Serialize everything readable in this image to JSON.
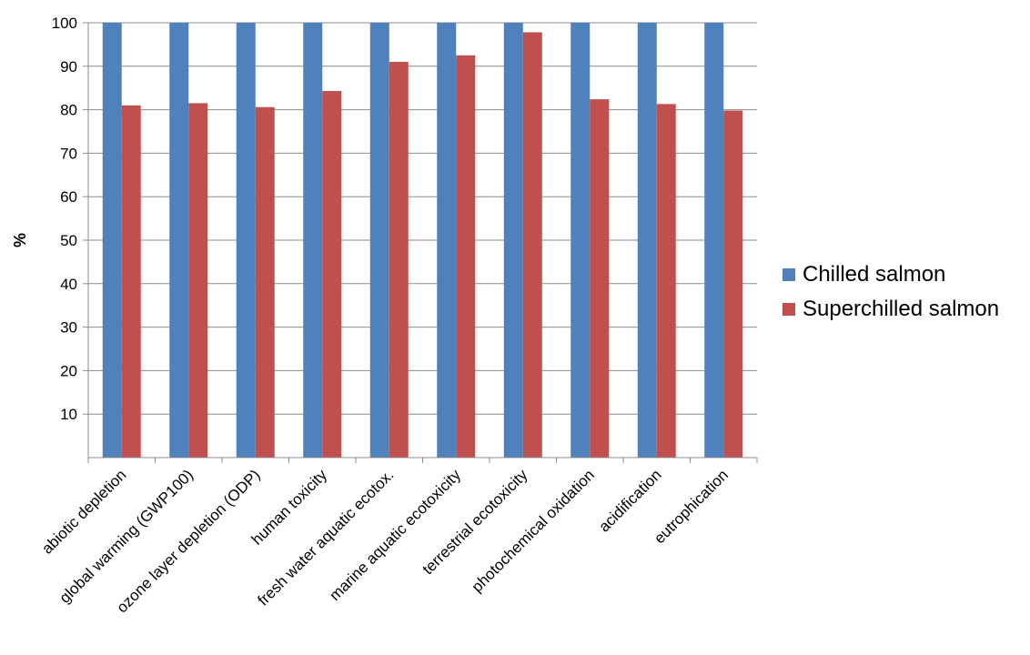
{
  "chart_data": {
    "type": "bar",
    "ylabel": "%",
    "ylim": [
      0,
      100
    ],
    "yticks": [
      10,
      20,
      30,
      40,
      50,
      60,
      70,
      80,
      90,
      100
    ],
    "grid": true,
    "legend_position": "right",
    "categories": [
      "abiotic depletion",
      "global warming (GWP100)",
      "ozone layer depletion (ODP)",
      "human toxicity",
      "fresh water aquatic ecotox.",
      "marine aquatic ecotoxicity",
      "terrestrial ecotoxicity",
      "photochemical oxidation",
      "acidification",
      "eutrophication"
    ],
    "series": [
      {
        "name": "Chilled salmon",
        "color": "#4f81bd",
        "values": [
          100,
          100,
          100,
          100,
          100,
          100,
          100,
          100,
          100,
          100
        ]
      },
      {
        "name": "Superchilled salmon",
        "color": "#c0504d",
        "values": [
          81,
          81.5,
          80.6,
          84.3,
          91,
          92.5,
          97.8,
          82.4,
          81.3,
          79.8
        ]
      }
    ]
  }
}
